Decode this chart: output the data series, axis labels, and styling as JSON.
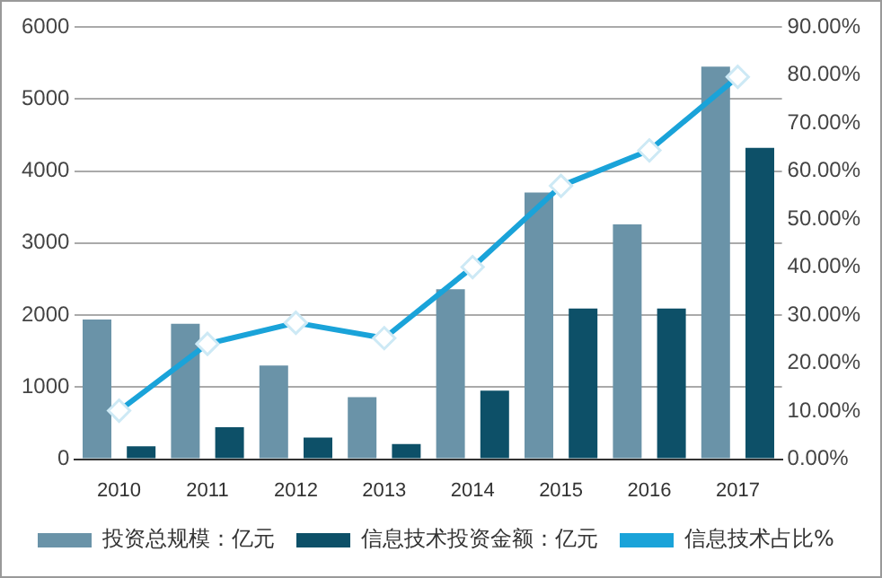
{
  "chart_data": {
    "type": "bar",
    "categories": [
      "2010",
      "2011",
      "2012",
      "2013",
      "2014",
      "2015",
      "2016",
      "2017"
    ],
    "series": [
      {
        "name": "投资总规模：亿元",
        "color": "#6a93a8",
        "values": [
          1940,
          1880,
          1300,
          860,
          2360,
          3700,
          3260,
          5450
        ]
      },
      {
        "name": "信息技术投资金额：亿元",
        "color": "#0d5068",
        "values": [
          180,
          445,
          300,
          210,
          950,
          2090,
          2090,
          4320
        ]
      },
      {
        "name": "信息技术占比%",
        "type": "line",
        "axis": "y2",
        "color": "#1aa3d9",
        "marker": "diamond",
        "values": [
          10.1,
          24,
          28.4,
          25.2,
          40,
          56.9,
          64.3,
          79.6
        ]
      }
    ],
    "ylim": [
      0,
      6000
    ],
    "yticks": [
      0,
      1000,
      2000,
      3000,
      4000,
      5000,
      6000
    ],
    "y2lim": [
      0,
      90
    ],
    "y2ticks": [
      {
        "value": 0,
        "label": "0.00%"
      },
      {
        "value": 10,
        "label": "10.00%"
      },
      {
        "value": 20,
        "label": "20.00%"
      },
      {
        "value": 30,
        "label": "30.00%"
      },
      {
        "value": 40,
        "label": "40.00%"
      },
      {
        "value": 50,
        "label": "50.00%"
      },
      {
        "value": 60,
        "label": "60.00%"
      },
      {
        "value": 70,
        "label": "70.00%"
      },
      {
        "value": 80,
        "label": "80.00%"
      },
      {
        "value": 90,
        "label": "90.00%"
      }
    ],
    "grid": "y",
    "legend": "bottom"
  }
}
